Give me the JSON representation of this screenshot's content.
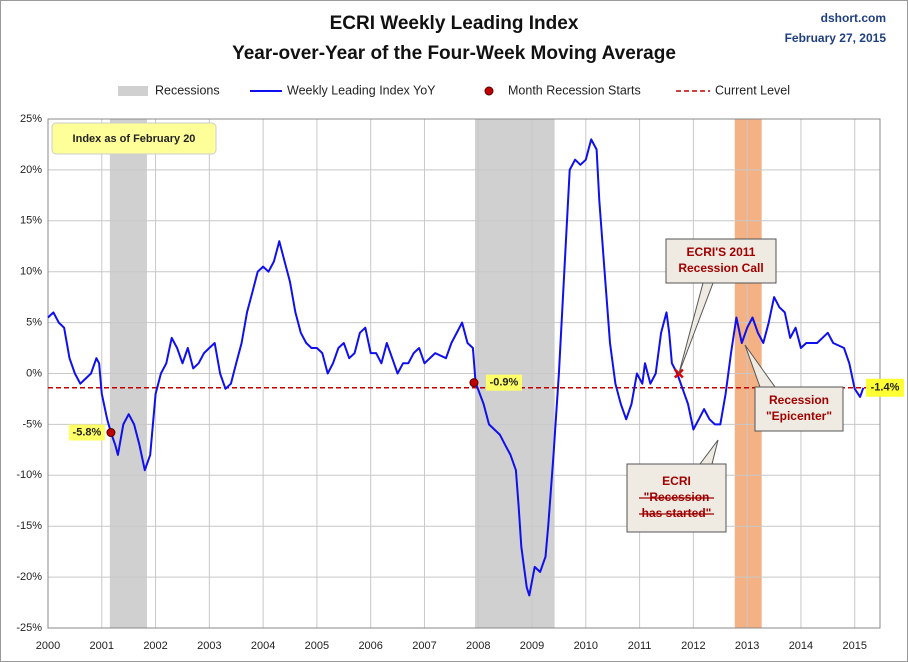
{
  "chart_data": {
    "type": "line",
    "title": "ECRI Weekly Leading Index",
    "subtitle": "Year-over-Year of the Four-Week Moving Average",
    "source": "dshort.com",
    "date": "February 27, 2015",
    "xlim": [
      2000,
      2015.47
    ],
    "ylim": [
      -25,
      25
    ],
    "xticks": [
      2000,
      2001,
      2002,
      2003,
      2004,
      2005,
      2006,
      2007,
      2008,
      2009,
      2010,
      2011,
      2012,
      2013,
      2014,
      2015
    ],
    "yticks": [
      {
        "value": -25,
        "label": "-25%"
      },
      {
        "value": -20,
        "label": "-20%"
      },
      {
        "value": -15,
        "label": "-15%"
      },
      {
        "value": -10,
        "label": "-10%"
      },
      {
        "value": -5,
        "label": "-5%"
      },
      {
        "value": 0,
        "label": "0%"
      },
      {
        "value": 5,
        "label": "5%"
      },
      {
        "value": 10,
        "label": "10%"
      },
      {
        "value": 15,
        "label": "15%"
      },
      {
        "value": 20,
        "label": "20%"
      },
      {
        "value": 25,
        "label": "25%"
      }
    ],
    "grid": true,
    "recessions": {
      "name": "Recessions",
      "color": "#d0d0d0",
      "ranges": [
        [
          2001.15,
          2001.84
        ],
        [
          2007.94,
          2009.42
        ]
      ]
    },
    "epicenter": {
      "color": "#f4b183",
      "range": [
        2012.77,
        2013.27
      ]
    },
    "series": [
      {
        "name": "Weekly Leading Index YoY",
        "color": "#1010ee",
        "x": [
          2000.0,
          2000.1,
          2000.2,
          2000.3,
          2000.4,
          2000.5,
          2000.6,
          2000.7,
          2000.8,
          2000.9,
          2000.95,
          2001.0,
          2001.1,
          2001.17,
          2001.25,
          2001.3,
          2001.4,
          2001.5,
          2001.6,
          2001.7,
          2001.8,
          2001.9,
          2002.0,
          2002.1,
          2002.2,
          2002.3,
          2002.4,
          2002.5,
          2002.6,
          2002.7,
          2002.8,
          2002.9,
          2003.0,
          2003.1,
          2003.2,
          2003.3,
          2003.4,
          2003.5,
          2003.6,
          2003.7,
          2003.8,
          2003.9,
          2004.0,
          2004.1,
          2004.2,
          2004.3,
          2004.4,
          2004.5,
          2004.6,
          2004.7,
          2004.8,
          2004.9,
          2005.0,
          2005.1,
          2005.2,
          2005.3,
          2005.4,
          2005.5,
          2005.6,
          2005.7,
          2005.8,
          2005.9,
          2006.0,
          2006.1,
          2006.2,
          2006.3,
          2006.4,
          2006.5,
          2006.6,
          2006.7,
          2006.8,
          2006.9,
          2007.0,
          2007.2,
          2007.4,
          2007.5,
          2007.7,
          2007.8,
          2007.9,
          2007.95,
          2008.1,
          2008.2,
          2008.4,
          2008.5,
          2008.6,
          2008.7,
          2008.75,
          2008.8,
          2008.9,
          2008.95,
          2009.05,
          2009.15,
          2009.25,
          2009.3,
          2009.4,
          2009.5,
          2009.6,
          2009.7,
          2009.8,
          2009.9,
          2010.0,
          2010.1,
          2010.2,
          2010.25,
          2010.35,
          2010.45,
          2010.55,
          2010.65,
          2010.75,
          2010.85,
          2010.95,
          2011.05,
          2011.1,
          2011.2,
          2011.3,
          2011.4,
          2011.5,
          2011.55,
          2011.6,
          2011.7,
          2011.8,
          2011.9,
          2012.0,
          2012.1,
          2012.2,
          2012.3,
          2012.4,
          2012.5,
          2012.6,
          2012.7,
          2012.8,
          2012.9,
          2013.0,
          2013.1,
          2013.2,
          2013.3,
          2013.4,
          2013.5,
          2013.6,
          2013.7,
          2013.8,
          2013.9,
          2014.0,
          2014.1,
          2014.3,
          2014.5,
          2014.6,
          2014.8,
          2014.9,
          2015.0,
          2015.1,
          2015.16
        ],
        "values": [
          5.5,
          6,
          5,
          4.5,
          1.5,
          0,
          -1,
          -0.5,
          0,
          1.5,
          1,
          -2,
          -4.5,
          -5.8,
          -7,
          -8,
          -5,
          -4,
          -5,
          -7,
          -9.5,
          -8,
          -2,
          0,
          1,
          3.5,
          2.5,
          1,
          2.5,
          0.5,
          1,
          2,
          2.5,
          3,
          0,
          -1.5,
          -1,
          1,
          3,
          6,
          8,
          10,
          10.5,
          10,
          11,
          13,
          11,
          9,
          6,
          4,
          3,
          2.5,
          2.5,
          2,
          0,
          1,
          2.5,
          3,
          1.5,
          2,
          4,
          4.5,
          2,
          2,
          1,
          3,
          1.5,
          0,
          1,
          1,
          2,
          2.5,
          1,
          2,
          1.5,
          3,
          5,
          3,
          2.5,
          -0.9,
          -3,
          -5,
          -6,
          -7,
          -8,
          -9.5,
          -13,
          -17,
          -21,
          -21.8,
          -19,
          -19.5,
          -18,
          -15,
          -8,
          0,
          10,
          20,
          21,
          20.5,
          21,
          23,
          22,
          17,
          10,
          3,
          -1,
          -3,
          -4.5,
          -3,
          0,
          -1,
          1,
          -1,
          0,
          4,
          6,
          4,
          1,
          0,
          -1.5,
          -3,
          -5.5,
          -4.5,
          -3.5,
          -4.5,
          -5,
          -5,
          -2,
          2,
          5.5,
          3,
          4.5,
          5.5,
          4,
          3,
          5,
          7.5,
          6.5,
          6,
          3.5,
          4.5,
          2.5,
          3,
          3,
          4,
          3,
          2.5,
          1,
          -1.5,
          -2.3,
          -1.4
        ]
      }
    ],
    "recession_starts": {
      "name": "Month Recession Starts",
      "color": "#c00000",
      "x": [
        2001.17,
        2007.92
      ],
      "y": [
        -5.8,
        -0.9
      ],
      "value_labels": [
        "-5.8%",
        "-0.9%"
      ]
    },
    "current_level": {
      "name": "Current Level",
      "color": "#c00000",
      "value": -1.4,
      "label": "-1.4%"
    },
    "ecri_call": {
      "x": 2011.73,
      "y": 0
    },
    "annotations": {
      "index_date": "Index as of February 20",
      "call": [
        "ECRI'S 2011",
        "Recession Call"
      ],
      "started": [
        "ECRI",
        "\"Recession",
        "has started\""
      ],
      "epicenter": [
        "Recession",
        "\"Epicenter\""
      ]
    }
  }
}
